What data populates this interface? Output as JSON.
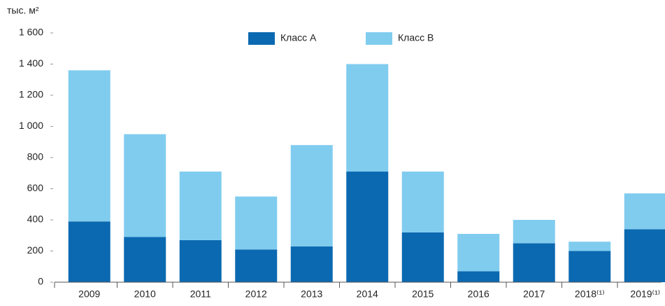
{
  "chart_data": {
    "type": "stacked-bar",
    "y_label": "тыс. м²",
    "categories": [
      "2009",
      "2010",
      "2011",
      "2012",
      "2013",
      "2014",
      "2015",
      "2016",
      "2017",
      "2018⁽¹⁾",
      "2019⁽¹⁾"
    ],
    "series": [
      {
        "name": "Класс А",
        "color": "#0b69b1",
        "values": [
          390,
          290,
          270,
          210,
          230,
          710,
          320,
          70,
          250,
          200,
          340
        ]
      },
      {
        "name": "Класс В",
        "color": "#80ccef",
        "values": [
          970,
          660,
          440,
          340,
          650,
          690,
          390,
          240,
          150,
          60,
          230
        ]
      }
    ],
    "ylim": [
      0,
      1600
    ],
    "yticks": [
      0,
      200,
      400,
      600,
      800,
      {
        "value": 1000,
        "label": "1 000"
      },
      {
        "value": 1200,
        "label": "1 200"
      },
      {
        "value": 1400,
        "label": "1 400"
      },
      {
        "value": 1600,
        "label": "1 600"
      }
    ],
    "legend": "top"
  }
}
